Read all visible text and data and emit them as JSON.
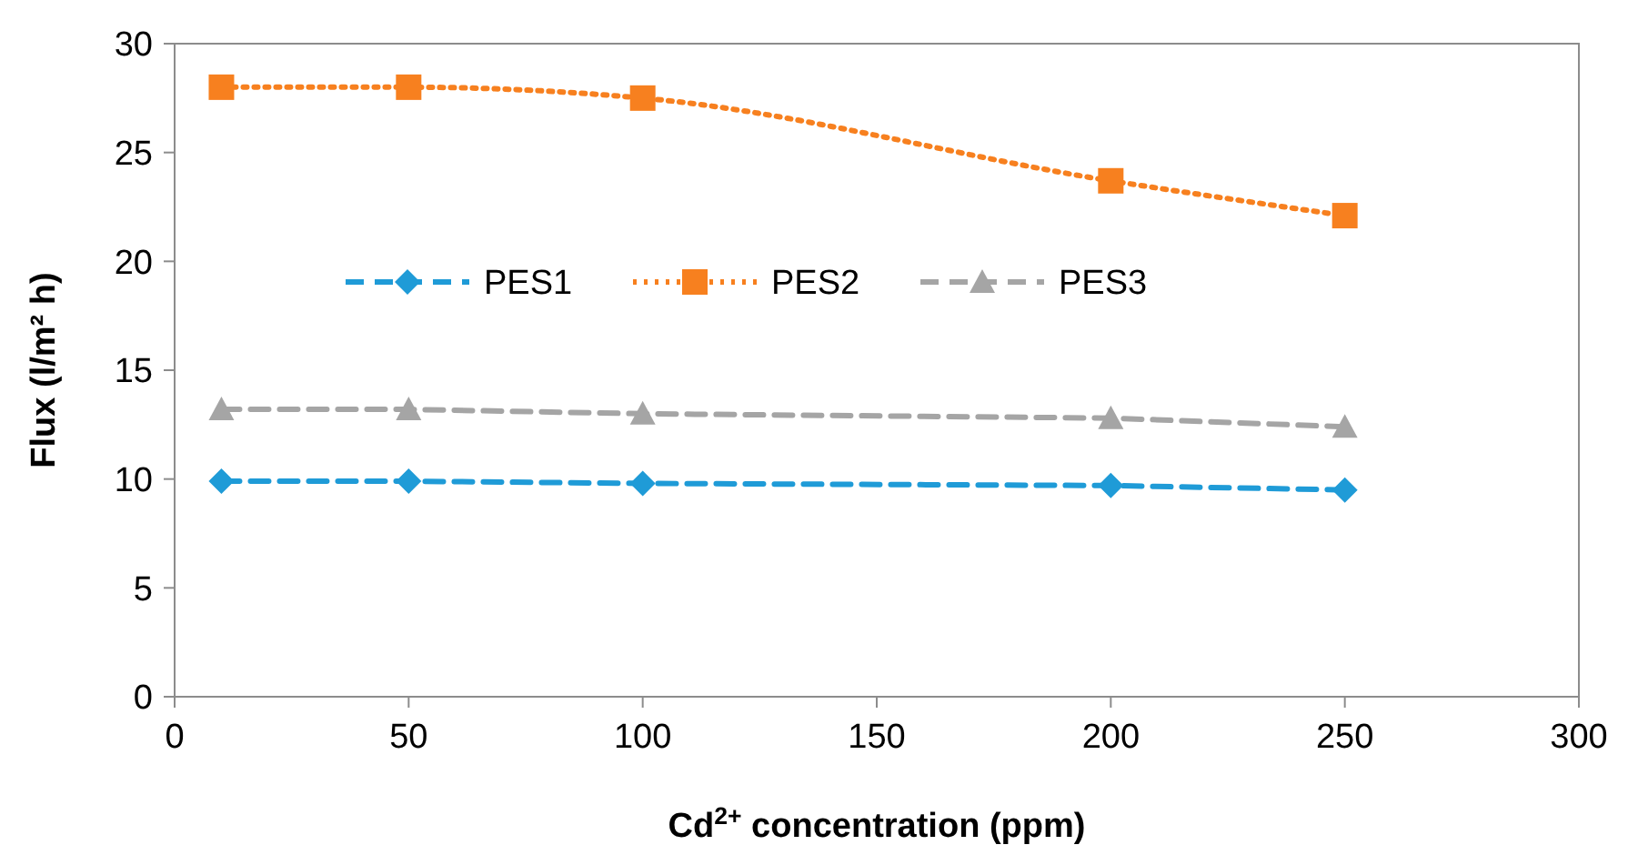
{
  "chart_data": {
    "type": "line",
    "xlabel": "Cd$^{2+}$ concentration (ppm)",
    "ylabel": "Flux (l/m² h)",
    "x": [
      10,
      50,
      100,
      200,
      250
    ],
    "series": [
      {
        "name": "PES1",
        "color": "#1f9bd7",
        "values": [
          9.9,
          9.9,
          9.8,
          9.7,
          9.5
        ],
        "marker": "diamond",
        "line_style": "dashed"
      },
      {
        "name": "PES2",
        "color": "#f7801f",
        "values": [
          28.0,
          28.0,
          27.5,
          23.7,
          22.1
        ],
        "marker": "square",
        "line_style": "dotted"
      },
      {
        "name": "PES3",
        "color": "#a5a5a5",
        "values": [
          13.2,
          13.2,
          13.0,
          12.8,
          12.4
        ],
        "marker": "triangle",
        "line_style": "dashed"
      }
    ],
    "xlim": [
      0,
      300
    ],
    "xticks": [
      0,
      50,
      100,
      150,
      200,
      250,
      300
    ],
    "ylim": [
      0,
      30
    ],
    "yticks": [
      0,
      5,
      10,
      15,
      20,
      25,
      30
    ],
    "grid": false,
    "legend": "top"
  }
}
